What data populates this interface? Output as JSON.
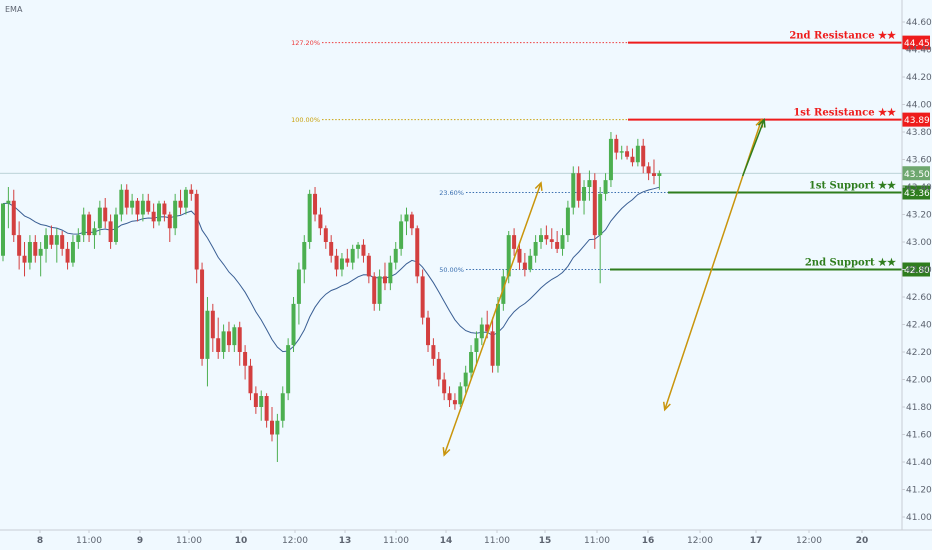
{
  "indicator_label": "EMA",
  "colors": {
    "background": "#f0f9ff",
    "up_candle": "#4caf50",
    "down_candle": "#d33f3f",
    "ema_line": "#3a5f94",
    "resistance": "#ee1c1c",
    "support": "#2f7d1e",
    "swing_arrow": "#c9950c",
    "target_arrow": "#2f7d1e",
    "current_price": "#6ea76f",
    "grid_axis_text": "#5d6470"
  },
  "chart_data": {
    "type": "candlestick",
    "x_tick_labels": [
      "8",
      "11:00",
      "9",
      "11:00",
      "10",
      "12:00",
      "13",
      "11:00",
      "14",
      "11:00",
      "15",
      "11:00",
      "16",
      "12:00",
      "17",
      "12:00",
      "20"
    ],
    "y_tick_labels": [
      "41.00",
      "41.20",
      "41.40",
      "41.60",
      "41.80",
      "42.00",
      "42.20",
      "42.40",
      "42.60",
      "42.80",
      "43.00",
      "43.20",
      "43.40",
      "43.60",
      "43.80",
      "44.00",
      "44.20",
      "44.40",
      "44.60"
    ],
    "ylim": [
      40.95,
      44.72
    ],
    "current_price": "43.50",
    "levels": [
      {
        "id": "second-resistance",
        "label": "2nd Resistance ★★",
        "price": 44.45,
        "price_label": "44.45",
        "type": "resistance"
      },
      {
        "id": "first-resistance",
        "label": "1st Resistance ★★",
        "price": 43.89,
        "price_label": "43.89",
        "type": "resistance"
      },
      {
        "id": "first-support",
        "label": "1st Support ★★",
        "price": 43.36,
        "price_label": "43.36",
        "type": "support"
      },
      {
        "id": "second-support",
        "label": "2nd Support ★★",
        "price": 42.8,
        "price_label": "42.80",
        "type": "support"
      }
    ],
    "fib_levels": [
      {
        "label": "127.20%",
        "price": 44.45,
        "color": "#ee3b3b"
      },
      {
        "label": "100.00%",
        "price": 43.89,
        "color": "#c9a20c"
      },
      {
        "label": "23.60%",
        "price": 43.36,
        "color": "#3a6fb0"
      },
      {
        "label": "50.00%",
        "price": 42.8,
        "color": "#3a6fb0"
      }
    ],
    "candles": [
      [
        42.9,
        43.28,
        42.86,
        43.28
      ],
      [
        43.28,
        43.4,
        43.1,
        43.3
      ],
      [
        43.3,
        43.38,
        43.0,
        43.05
      ],
      [
        43.05,
        43.15,
        42.8,
        42.9
      ],
      [
        42.9,
        43.0,
        42.75,
        42.85
      ],
      [
        42.85,
        43.05,
        42.8,
        43.0
      ],
      [
        43.0,
        43.05,
        42.85,
        42.9
      ],
      [
        42.9,
        43.0,
        42.75,
        42.95
      ],
      [
        42.95,
        43.1,
        42.85,
        43.05
      ],
      [
        43.05,
        43.12,
        42.95,
        42.98
      ],
      [
        42.98,
        43.1,
        42.85,
        43.05
      ],
      [
        43.05,
        43.08,
        42.9,
        42.95
      ],
      [
        42.95,
        43.0,
        42.8,
        42.85
      ],
      [
        42.85,
        43.05,
        42.82,
        43.0
      ],
      [
        43.0,
        43.1,
        42.95,
        43.05
      ],
      [
        43.05,
        43.25,
        43.0,
        43.2
      ],
      [
        43.2,
        43.22,
        43.0,
        43.05
      ],
      [
        43.05,
        43.15,
        42.95,
        43.1
      ],
      [
        43.1,
        43.3,
        43.05,
        43.25
      ],
      [
        43.25,
        43.32,
        43.1,
        43.15
      ],
      [
        43.15,
        43.2,
        42.95,
        43.0
      ],
      [
        43.0,
        43.25,
        42.98,
        43.2
      ],
      [
        43.2,
        43.42,
        43.15,
        43.38
      ],
      [
        43.38,
        43.42,
        43.2,
        43.25
      ],
      [
        43.25,
        43.35,
        43.2,
        43.3
      ],
      [
        43.3,
        43.32,
        43.15,
        43.2
      ],
      [
        43.2,
        43.35,
        43.15,
        43.3
      ],
      [
        43.3,
        43.35,
        43.2,
        43.22
      ],
      [
        43.22,
        43.28,
        43.1,
        43.15
      ],
      [
        43.15,
        43.3,
        43.12,
        43.28
      ],
      [
        43.28,
        43.3,
        43.15,
        43.2
      ],
      [
        43.2,
        43.22,
        43.0,
        43.1
      ],
      [
        43.1,
        43.35,
        43.05,
        43.3
      ],
      [
        43.3,
        43.38,
        43.2,
        43.25
      ],
      [
        43.25,
        43.4,
        43.2,
        43.38
      ],
      [
        43.38,
        43.42,
        43.3,
        43.35
      ],
      [
        43.35,
        43.38,
        42.7,
        42.8
      ],
      [
        42.8,
        42.85,
        42.1,
        42.15
      ],
      [
        42.15,
        42.6,
        41.95,
        42.5
      ],
      [
        42.5,
        42.55,
        42.2,
        42.3
      ],
      [
        42.3,
        42.45,
        42.15,
        42.2
      ],
      [
        42.2,
        42.4,
        42.15,
        42.35
      ],
      [
        42.35,
        42.42,
        42.2,
        42.25
      ],
      [
        42.25,
        42.4,
        42.2,
        42.38
      ],
      [
        42.38,
        42.42,
        42.1,
        42.2
      ],
      [
        42.2,
        42.25,
        42.0,
        42.1
      ],
      [
        42.1,
        42.15,
        41.85,
        41.9
      ],
      [
        41.9,
        41.95,
        41.75,
        41.8
      ],
      [
        41.8,
        41.92,
        41.7,
        41.88
      ],
      [
        41.88,
        41.9,
        41.65,
        41.7
      ],
      [
        41.7,
        41.8,
        41.55,
        41.6
      ],
      [
        41.6,
        41.75,
        41.4,
        41.7
      ],
      [
        41.7,
        41.95,
        41.65,
        41.9
      ],
      [
        41.9,
        42.3,
        41.85,
        42.25
      ],
      [
        42.25,
        42.6,
        42.2,
        42.55
      ],
      [
        42.55,
        42.85,
        42.4,
        42.8
      ],
      [
        42.8,
        43.05,
        42.7,
        43.0
      ],
      [
        43.0,
        43.38,
        42.95,
        43.35
      ],
      [
        43.35,
        43.4,
        43.15,
        43.2
      ],
      [
        43.2,
        43.25,
        43.05,
        43.1
      ],
      [
        43.1,
        43.12,
        42.95,
        43.0
      ],
      [
        43.0,
        43.05,
        42.85,
        42.9
      ],
      [
        42.9,
        42.95,
        42.75,
        42.8
      ],
      [
        42.8,
        42.92,
        42.75,
        42.88
      ],
      [
        42.88,
        42.95,
        42.82,
        42.85
      ],
      [
        42.85,
        42.98,
        42.8,
        42.95
      ],
      [
        42.95,
        43.0,
        42.88,
        42.98
      ],
      [
        42.98,
        43.02,
        42.85,
        42.9
      ],
      [
        42.9,
        42.92,
        42.7,
        42.75
      ],
      [
        42.75,
        42.78,
        42.5,
        42.55
      ],
      [
        42.55,
        42.8,
        42.5,
        42.75
      ],
      [
        42.75,
        42.85,
        42.65,
        42.7
      ],
      [
        42.7,
        42.9,
        42.65,
        42.85
      ],
      [
        42.85,
        43.0,
        42.8,
        42.95
      ],
      [
        42.95,
        43.2,
        42.9,
        43.15
      ],
      [
        43.15,
        43.25,
        43.05,
        43.2
      ],
      [
        43.2,
        43.22,
        43.05,
        43.1
      ],
      [
        43.1,
        43.12,
        42.7,
        42.75
      ],
      [
        42.75,
        42.8,
        42.4,
        42.45
      ],
      [
        42.45,
        42.5,
        42.2,
        42.25
      ],
      [
        42.25,
        42.3,
        42.1,
        42.15
      ],
      [
        42.15,
        42.2,
        41.95,
        42.0
      ],
      [
        42.0,
        42.05,
        41.85,
        41.9
      ],
      [
        41.9,
        41.95,
        41.8,
        41.85
      ],
      [
        41.85,
        41.9,
        41.78,
        41.82
      ],
      [
        41.82,
        41.98,
        41.8,
        41.95
      ],
      [
        41.95,
        42.1,
        41.9,
        42.05
      ],
      [
        42.05,
        42.25,
        42.0,
        42.2
      ],
      [
        42.2,
        42.35,
        42.1,
        42.3
      ],
      [
        42.3,
        42.45,
        42.25,
        42.4
      ],
      [
        42.4,
        42.5,
        42.3,
        42.35
      ],
      [
        42.35,
        42.45,
        42.05,
        42.1
      ],
      [
        42.1,
        42.6,
        42.05,
        42.55
      ],
      [
        42.55,
        42.8,
        42.5,
        42.75
      ],
      [
        42.75,
        43.08,
        42.7,
        43.05
      ],
      [
        43.05,
        43.1,
        42.9,
        42.95
      ],
      [
        42.95,
        43.0,
        42.8,
        42.85
      ],
      [
        42.85,
        42.92,
        42.75,
        42.8
      ],
      [
        42.8,
        42.95,
        42.78,
        42.9
      ],
      [
        42.9,
        43.05,
        42.85,
        43.0
      ],
      [
        43.0,
        43.1,
        42.95,
        43.05
      ],
      [
        43.05,
        43.12,
        42.98,
        43.02
      ],
      [
        43.02,
        43.1,
        42.95,
        43.0
      ],
      [
        43.0,
        43.08,
        42.92,
        42.95
      ],
      [
        42.95,
        43.1,
        42.9,
        43.05
      ],
      [
        43.05,
        43.3,
        43.0,
        43.25
      ],
      [
        43.25,
        43.55,
        43.2,
        43.5
      ],
      [
        43.5,
        43.55,
        43.25,
        43.3
      ],
      [
        43.3,
        43.45,
        43.2,
        43.4
      ],
      [
        43.4,
        43.52,
        43.3,
        43.45
      ],
      [
        43.45,
        43.5,
        42.95,
        43.05
      ],
      [
        43.05,
        43.4,
        42.7,
        43.35
      ],
      [
        43.35,
        43.5,
        43.3,
        43.45
      ],
      [
        43.45,
        43.8,
        43.4,
        43.75
      ],
      [
        43.75,
        43.78,
        43.6,
        43.65
      ],
      [
        43.65,
        43.7,
        43.6,
        43.66
      ],
      [
        43.66,
        43.7,
        43.6,
        43.62
      ],
      [
        43.62,
        43.68,
        43.55,
        43.58
      ],
      [
        43.58,
        43.75,
        43.55,
        43.7
      ],
      [
        43.7,
        43.75,
        43.5,
        43.55
      ],
      [
        43.55,
        43.58,
        43.45,
        43.5
      ],
      [
        43.5,
        43.6,
        43.42,
        43.48
      ],
      [
        43.48,
        43.52,
        43.38,
        43.5
      ]
    ],
    "swing_arrows": [
      {
        "from": [
          82,
          41.45
        ],
        "to": [
          100,
          43.43
        ]
      },
      {
        "from": [
          123,
          41.78
        ],
        "to": [
          141,
          43.89
        ]
      }
    ],
    "target_arrow": {
      "from": [
        136,
        43.48
      ],
      "to": [
        140,
        43.89
      ]
    }
  }
}
